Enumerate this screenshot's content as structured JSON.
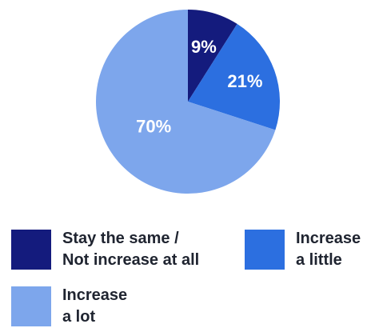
{
  "chart_data": {
    "type": "pie",
    "title": "",
    "slices": [
      {
        "label_lines": [
          "Stay the same /",
          "Not increase at all"
        ],
        "value": 9,
        "display": "9%",
        "color": "#141b7d"
      },
      {
        "label_lines": [
          "Increase",
          "a little"
        ],
        "value": 21,
        "display": "21%",
        "color": "#2c6fe0"
      },
      {
        "label_lines": [
          "Increase",
          "a lot"
        ],
        "value": 70,
        "display": "70%",
        "color": "#7da6ec"
      }
    ],
    "legend_position": "bottom"
  }
}
